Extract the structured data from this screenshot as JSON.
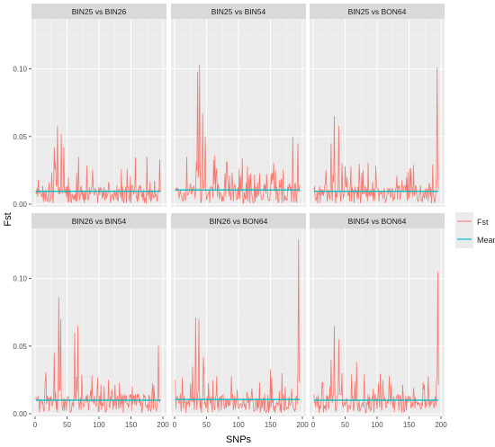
{
  "chart_data": {
    "type": "line",
    "xlabel": "SNPs",
    "ylabel": "Fst",
    "xlim": [
      0,
      200
    ],
    "ylim": [
      -0.002,
      0.137
    ],
    "x_ticks": [
      "0",
      "50",
      "100",
      "150",
      "200"
    ],
    "y_ticks": [
      "0.00",
      "0.05",
      "0.10"
    ],
    "y_tick_values": [
      0.0,
      0.05,
      0.1
    ],
    "x_tick_values": [
      0,
      50,
      100,
      150,
      200
    ],
    "grid": true,
    "legend_position": "right",
    "legend": [
      {
        "label": "Fst",
        "color": "#F8766D"
      },
      {
        "label": "Mean",
        "color": "#00BFC4"
      }
    ],
    "colors": {
      "fst": "#F8766D",
      "mean": "#00BFC4",
      "panel_bg": "#EBEBEB",
      "strip_bg": "#D9D9D9",
      "grid": "#FFFFFF"
    },
    "n_snps": 196,
    "panels": [
      {
        "title": "BIN25 vs BIN26",
        "mean": 0.0095,
        "base": 0.0085,
        "peaks": [
          [
            30,
            0.042
          ],
          [
            35,
            0.058
          ],
          [
            41,
            0.052
          ],
          [
            45,
            0.042
          ],
          [
            68,
            0.035
          ],
          [
            195,
            0.033
          ]
        ]
      },
      {
        "title": "BIN25 vs BIN54",
        "mean": 0.0105,
        "base": 0.0095,
        "peaks": [
          [
            36,
            0.098
          ],
          [
            39,
            0.103
          ],
          [
            44,
            0.067
          ],
          [
            48,
            0.05
          ],
          [
            19,
            0.035
          ],
          [
            185,
            0.05
          ],
          [
            193,
            0.045
          ],
          [
            199,
            0.033
          ]
        ]
      },
      {
        "title": "BIN25 vs BON64",
        "mean": 0.0095,
        "base": 0.0085,
        "peaks": [
          [
            33,
            0.065
          ],
          [
            40,
            0.058
          ],
          [
            28,
            0.045
          ],
          [
            45,
            0.03
          ],
          [
            50,
            0.028
          ],
          [
            194,
            0.101
          ]
        ]
      },
      {
        "title": "BIN26 vs BIN54",
        "mean": 0.01,
        "base": 0.009,
        "peaks": [
          [
            37,
            0.086
          ],
          [
            40,
            0.07
          ],
          [
            30,
            0.045
          ],
          [
            62,
            0.06
          ],
          [
            67,
            0.065
          ],
          [
            193,
            0.051
          ]
        ]
      },
      {
        "title": "BIN26 vs BON64",
        "mean": 0.0105,
        "base": 0.009,
        "peaks": [
          [
            33,
            0.071
          ],
          [
            38,
            0.07
          ],
          [
            45,
            0.042
          ],
          [
            28,
            0.035
          ],
          [
            194,
            0.129
          ]
        ]
      },
      {
        "title": "BIN54 vs BON64",
        "mean": 0.01,
        "base": 0.009,
        "peaks": [
          [
            33,
            0.065
          ],
          [
            40,
            0.055
          ],
          [
            28,
            0.04
          ],
          [
            45,
            0.03
          ],
          [
            68,
            0.038
          ],
          [
            195,
            0.105
          ]
        ]
      }
    ]
  }
}
